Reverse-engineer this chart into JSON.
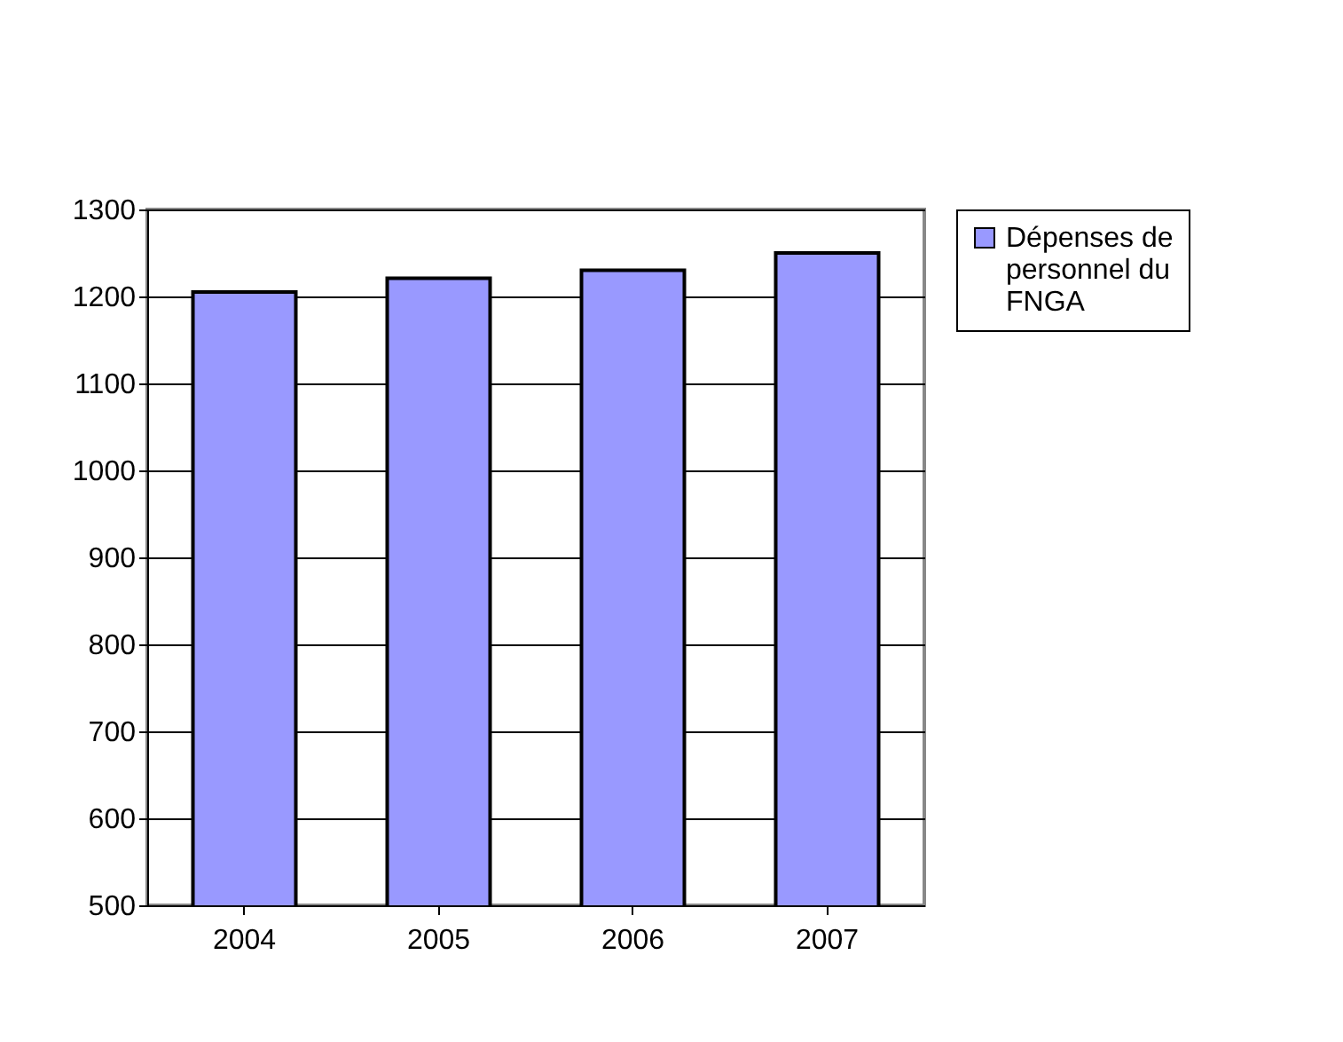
{
  "chart_data": {
    "type": "bar",
    "categories": [
      "2004",
      "2005",
      "2006",
      "2007"
    ],
    "series": [
      {
        "name": "Dépenses de personnel du FNGA",
        "color": "#9999ff",
        "values": [
          1205,
          1221,
          1230,
          1250
        ]
      }
    ],
    "ylim": [
      500,
      1300
    ],
    "yticks": [
      500,
      600,
      700,
      800,
      900,
      1000,
      1100,
      1200,
      1300
    ],
    "grid": "y",
    "legend": "right"
  }
}
